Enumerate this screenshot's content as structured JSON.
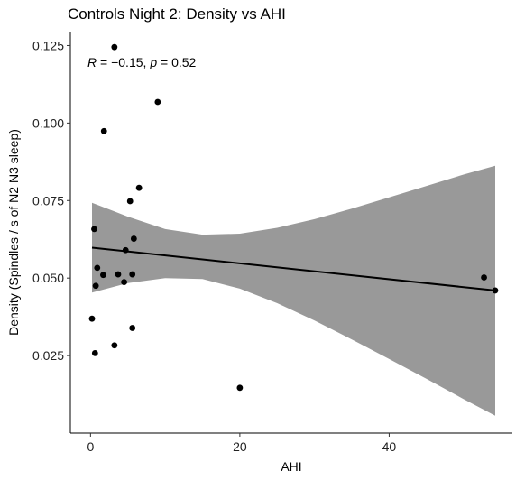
{
  "chart_data": {
    "type": "scatter",
    "title": "Controls Night 2: Density vs AHI",
    "xlabel": "AHI",
    "ylabel": "Density (Spindles / s of N2 N3 sleep)",
    "xlim": [
      -2.7,
      56.5
    ],
    "ylim": [
      0.0,
      0.1295
    ],
    "x_ticks": [
      0,
      20,
      40
    ],
    "y_ticks": [
      0.025,
      0.05,
      0.075,
      0.1,
      0.125
    ],
    "y_tick_labels": [
      "0.025",
      "0.050",
      "0.075",
      "0.100",
      "0.125"
    ],
    "grid": false,
    "annotation": {
      "r_label": "R",
      "r_value": "−0.15",
      "p_label": "p",
      "p_value": "0.52",
      "position": "top-left"
    },
    "points": [
      {
        "x": 3.2,
        "y": 0.1245
      },
      {
        "x": 9.0,
        "y": 0.1068
      },
      {
        "x": 1.8,
        "y": 0.0974
      },
      {
        "x": 6.5,
        "y": 0.0791
      },
      {
        "x": 5.3,
        "y": 0.0748
      },
      {
        "x": 0.5,
        "y": 0.0658
      },
      {
        "x": 5.8,
        "y": 0.0627
      },
      {
        "x": 4.7,
        "y": 0.059
      },
      {
        "x": 0.9,
        "y": 0.0533
      },
      {
        "x": 1.7,
        "y": 0.051
      },
      {
        "x": 3.7,
        "y": 0.0512
      },
      {
        "x": 5.6,
        "y": 0.0512
      },
      {
        "x": 4.5,
        "y": 0.0487
      },
      {
        "x": 0.7,
        "y": 0.0475
      },
      {
        "x": 52.7,
        "y": 0.0502
      },
      {
        "x": 54.2,
        "y": 0.046
      },
      {
        "x": 0.2,
        "y": 0.0369
      },
      {
        "x": 5.6,
        "y": 0.0339
      },
      {
        "x": 3.2,
        "y": 0.0283
      },
      {
        "x": 0.6,
        "y": 0.0258
      },
      {
        "x": 20.0,
        "y": 0.0146
      }
    ],
    "fit": {
      "method": "linear",
      "x_range": [
        0.2,
        54.2
      ],
      "y_start": 0.0598,
      "y_end": 0.046,
      "color": "#000000"
    },
    "ci_band": {
      "color": "#999999",
      "points": [
        {
          "x": 0.2,
          "lo": 0.0453,
          "hi": 0.0743
        },
        {
          "x": 5.0,
          "lo": 0.0484,
          "hi": 0.0698
        },
        {
          "x": 10.0,
          "lo": 0.05,
          "hi": 0.0658
        },
        {
          "x": 15.0,
          "lo": 0.0497,
          "hi": 0.064
        },
        {
          "x": 20.0,
          "lo": 0.0466,
          "hi": 0.0643
        },
        {
          "x": 25.0,
          "lo": 0.0419,
          "hi": 0.0662
        },
        {
          "x": 30.0,
          "lo": 0.0363,
          "hi": 0.069
        },
        {
          "x": 35.0,
          "lo": 0.0302,
          "hi": 0.0724
        },
        {
          "x": 40.0,
          "lo": 0.0239,
          "hi": 0.076
        },
        {
          "x": 45.0,
          "lo": 0.0175,
          "hi": 0.0797
        },
        {
          "x": 50.0,
          "lo": 0.0109,
          "hi": 0.0834
        },
        {
          "x": 54.2,
          "lo": 0.0056,
          "hi": 0.0862
        }
      ]
    }
  }
}
